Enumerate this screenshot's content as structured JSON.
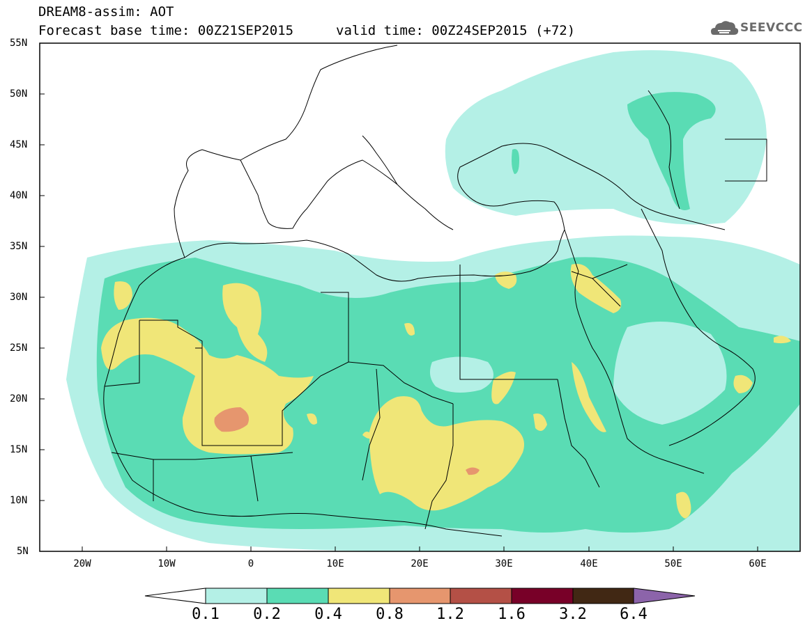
{
  "header": {
    "line1": "DREAM8-assim: AOT",
    "line2": "Forecast base time: 00Z21SEP2015",
    "valid": "valid time: 00Z24SEP2015 (+72)",
    "logo": "SEEVCCC"
  },
  "map": {
    "lat_labels": [
      "55N",
      "50N",
      "45N",
      "40N",
      "35N",
      "30N",
      "25N",
      "20N",
      "15N",
      "10N",
      "5N"
    ],
    "lon_labels": [
      "20W",
      "10W",
      "0",
      "10E",
      "20E",
      "30E",
      "40E",
      "50E",
      "60E"
    ],
    "colors": {
      "c01": "#b4f0e6",
      "c02": "#5adcb4",
      "c04": "#f0e678",
      "c08": "#e6966e",
      "c12": "#b45046",
      "c16": "#780028",
      "c32": "#412814",
      "c64": "#8c64aa"
    }
  },
  "colorbar": {
    "labels": [
      "0.1",
      "0.2",
      "0.4",
      "0.8",
      "1.2",
      "1.6",
      "3.2",
      "6.4"
    ]
  }
}
